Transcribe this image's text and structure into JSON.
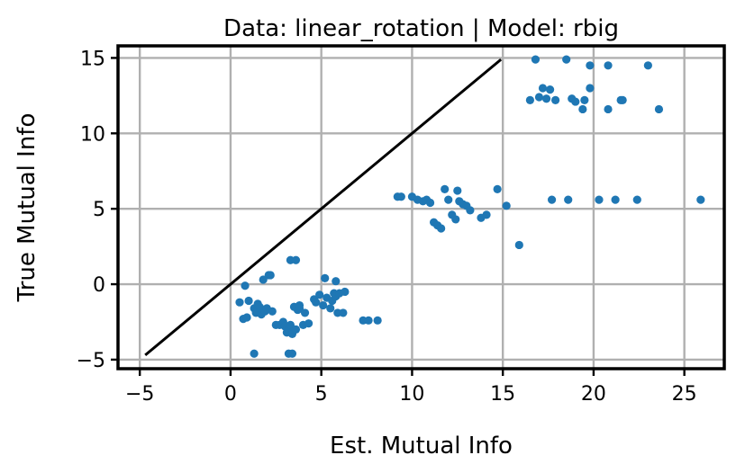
{
  "chart_data": {
    "type": "scatter",
    "title": "Data: linear_rotation | Model: rbig",
    "xlabel": "Est. Mutual Info",
    "ylabel": "True Mutual Info",
    "xlim": [
      -6.2,
      27.2
    ],
    "ylim": [
      -5.6,
      15.8
    ],
    "xticks": [
      -5,
      0,
      5,
      10,
      15,
      20,
      25
    ],
    "yticks": [
      -5,
      0,
      5,
      10,
      15
    ],
    "xtick_labels": [
      "−5",
      "0",
      "5",
      "10",
      "15",
      "20",
      "25"
    ],
    "ytick_labels": [
      "−5",
      "0",
      "5",
      "10",
      "15"
    ],
    "grid": true,
    "colors": {
      "points": "#1f77b4",
      "reference_line": "#000000",
      "grid": "#b0b0b0"
    },
    "reference_line": {
      "x": [
        -4.7,
        14.9
      ],
      "y": [
        -4.7,
        14.9
      ]
    },
    "series": [
      {
        "x": [
          16.8,
          18.5,
          17.2,
          17.6,
          17.0,
          17.4,
          17.9,
          16.5,
          18.8,
          19.0,
          19.5,
          19.8,
          19.8,
          19.4,
          20.8,
          21.5,
          21.6,
          20.8,
          23.0,
          23.6,
          9.2,
          9.4,
          10.0,
          10.3,
          10.6,
          10.8,
          11.0,
          11.2,
          11.4,
          11.6,
          11.8,
          12.0,
          12.2,
          12.4,
          12.5,
          12.6,
          12.8,
          13.0,
          13.2,
          13.8,
          14.1,
          14.7,
          15.2,
          15.9,
          17.7,
          18.6,
          20.3,
          21.2,
          22.4,
          25.9,
          0.5,
          0.7,
          0.8,
          0.9,
          1.0,
          1.3,
          1.4,
          1.5,
          1.6,
          1.7,
          1.8,
          1.9,
          2.0,
          2.1,
          2.2,
          2.3,
          2.5,
          2.7,
          2.9,
          3.0,
          3.1,
          3.2,
          3.3,
          3.4,
          3.5,
          3.6,
          3.7,
          3.8,
          4.0,
          4.3,
          4.6,
          4.7,
          4.9,
          5.1,
          5.3,
          5.5,
          5.6,
          5.7,
          5.8,
          5.9,
          6.0,
          6.2,
          6.3,
          7.3,
          7.6,
          8.1,
          3.3,
          3.6,
          3.8,
          4.1,
          5.2,
          5.8,
          1.3,
          3.2,
          3.4
        ],
        "y": [
          14.9,
          14.9,
          13.0,
          12.9,
          12.4,
          12.3,
          12.2,
          12.2,
          12.3,
          12.1,
          12.2,
          13.0,
          14.5,
          11.6,
          14.5,
          12.2,
          12.2,
          11.6,
          14.5,
          11.6,
          5.8,
          5.8,
          5.8,
          5.6,
          5.5,
          5.6,
          5.4,
          4.1,
          3.9,
          3.7,
          6.3,
          5.6,
          4.6,
          4.3,
          6.2,
          5.5,
          5.3,
          5.2,
          4.9,
          4.4,
          4.6,
          6.3,
          5.2,
          2.6,
          5.6,
          5.6,
          5.6,
          5.6,
          5.6,
          5.6,
          -1.2,
          -2.3,
          -0.1,
          -2.2,
          -1.1,
          -1.6,
          -1.9,
          -1.3,
          -1.5,
          -2.0,
          0.3,
          -1.8,
          -1.6,
          0.6,
          0.6,
          -1.8,
          -2.7,
          -2.7,
          -2.5,
          -2.8,
          -3.2,
          -3.0,
          -2.7,
          -3.3,
          -1.5,
          -3.0,
          -1.7,
          -1.4,
          -2.7,
          -2.6,
          -1.0,
          -1.2,
          -0.7,
          -1.4,
          -0.9,
          -1.6,
          -1.1,
          -0.6,
          -0.8,
          -1.9,
          -0.6,
          -1.9,
          -0.5,
          -2.4,
          -2.4,
          -2.4,
          1.6,
          1.6,
          -1.6,
          -1.9,
          0.4,
          0.2,
          -4.6,
          -4.6,
          -4.6
        ]
      }
    ]
  }
}
